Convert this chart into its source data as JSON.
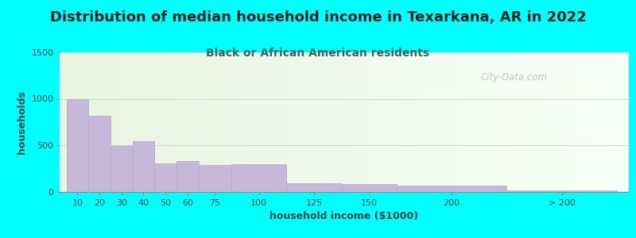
{
  "title": "Distribution of median household income in Texarkana, AR in 2022",
  "subtitle": "Black or African American residents",
  "xlabel": "household income ($1000)",
  "ylabel": "households",
  "background_color": "#00FFFF",
  "bar_color": "#c5b8d8",
  "bar_edge_color": "#b8aacb",
  "categories": [
    "10",
    "20",
    "30",
    "40",
    "50",
    "60",
    "75",
    "100",
    "125",
    "150",
    "200",
    "> 200"
  ],
  "values": [
    1000,
    820,
    490,
    545,
    305,
    325,
    290,
    295,
    90,
    80,
    60,
    10
  ],
  "widths": [
    10,
    10,
    10,
    10,
    10,
    10,
    15,
    25,
    25,
    25,
    50,
    50
  ],
  "left_edges": [
    0,
    10,
    20,
    30,
    40,
    50,
    60,
    75,
    100,
    125,
    150,
    200
  ],
  "ylim": [
    0,
    1500
  ],
  "yticks": [
    0,
    500,
    1000,
    1500
  ],
  "title_fontsize": 13,
  "subtitle_fontsize": 10,
  "axis_label_fontsize": 9,
  "tick_fontsize": 8,
  "title_color": "#222222",
  "subtitle_color": "#336666",
  "axis_label_color": "#444444",
  "watermark_text": "City-Data.com",
  "watermark_color": "#bbbbbb",
  "plot_bg_left": "#e8f5e0",
  "plot_bg_right": "#f8fff8",
  "grid_color": "#ccddcc"
}
